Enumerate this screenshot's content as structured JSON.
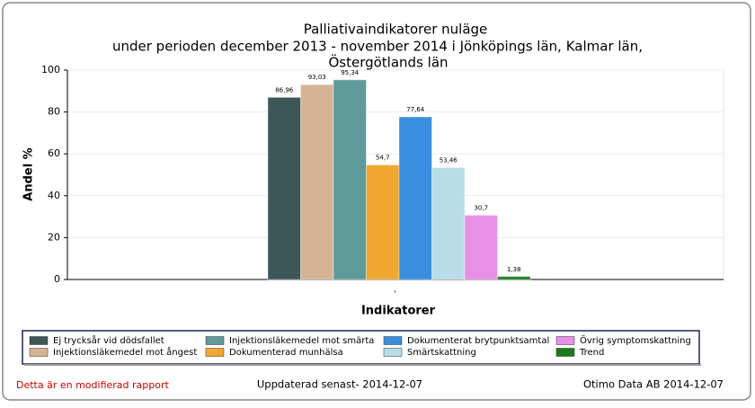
{
  "chart_data": {
    "type": "bar",
    "title_lines": [
      "Palliativaindikatorer nuläge",
      "under perioden december 2013 - november 2014 i   Jönköpings län,  Kalmar län,",
      "Östergötlands län"
    ],
    "x_label": "Indikatorer",
    "y_label": "Andel %",
    "categories": [
      "`"
    ],
    "ylim": [
      0,
      100
    ],
    "yticks": [
      0,
      20,
      40,
      60,
      80,
      100
    ],
    "grid": true,
    "series": [
      {
        "name": "Ej trycksår vid dödsfallet",
        "color": "#3d5656",
        "values": [
          86.96
        ],
        "value_labels": [
          "86,96"
        ]
      },
      {
        "name": "Injektionsläkemedel mot ångest",
        "color": "#d4b494",
        "values": [
          93.03
        ],
        "value_labels": [
          "93,03"
        ]
      },
      {
        "name": "Injektionsläkemedel mot smärta",
        "color": "#5f9a9a",
        "values": [
          95.34
        ],
        "value_labels": [
          "95,34"
        ]
      },
      {
        "name": "Dokumenterad munhälsa",
        "color": "#f0a830",
        "values": [
          54.7
        ],
        "value_labels": [
          "54,7"
        ]
      },
      {
        "name": "Dokumenterat brytpunktsamtal",
        "color": "#3a8ee0",
        "values": [
          77.64
        ],
        "value_labels": [
          "77,64"
        ]
      },
      {
        "name": "Smärtskattning",
        "color": "#b8dde8",
        "values": [
          53.46
        ],
        "value_labels": [
          "53,46"
        ]
      },
      {
        "name": "Övrig symptomskattning",
        "color": "#e890e8",
        "values": [
          30.7
        ],
        "value_labels": [
          "30,7"
        ]
      },
      {
        "name": "Trend",
        "color": "#1a7a1a",
        "values": [
          1.38
        ],
        "value_labels": [
          "1,38"
        ]
      }
    ]
  },
  "footer": {
    "left": "Detta är en modifierad rapport",
    "center": "Uppdaterad senast- 2014-12-07",
    "right": "Otimo Data AB 2014-12-07"
  }
}
